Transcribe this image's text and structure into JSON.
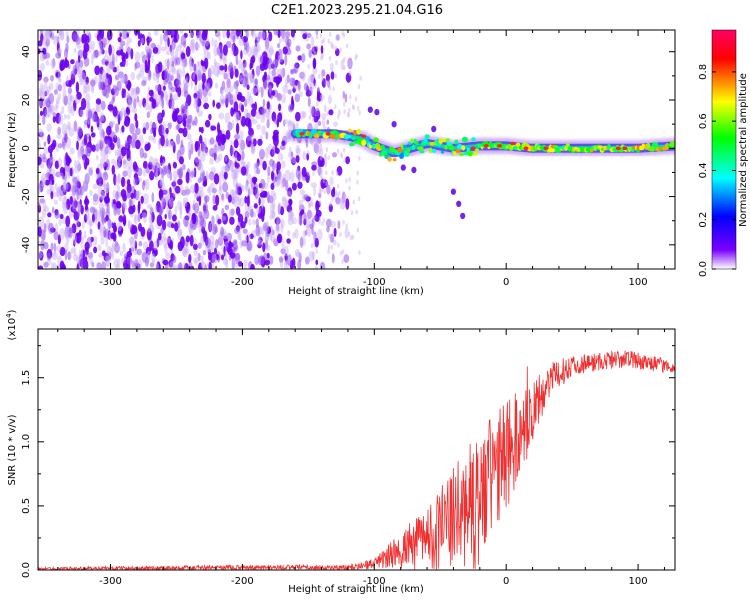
{
  "title": "C2E1.2023.295.21.04.G16",
  "chart_data": [
    {
      "type": "heatmap",
      "xlabel": "Height of straight line (km)",
      "ylabel": "Frequency (Hz)",
      "xlim": [
        -355,
        128
      ],
      "ylim": [
        -50,
        49
      ],
      "x_ticks": [
        "-300",
        "-200",
        "-100",
        "0",
        "100"
      ],
      "y_ticks": [
        "-40",
        "-20",
        "0",
        "20",
        "40"
      ],
      "colorbar": {
        "label": "Normalized spectral amplitude",
        "range": [
          0,
          0.97
        ],
        "ticks": [
          "0.0",
          "0.2",
          "0.4",
          "0.6",
          "0.8"
        ],
        "colormap": [
          "#ffffff",
          "#7a00ff",
          "#0000ff",
          "#00ffff",
          "#00ff00",
          "#ffff00",
          "#ff0000",
          "#ff0066"
        ]
      },
      "features": {
        "noise_region_x": [
          -355,
          -115
        ],
        "signal_trace": [
          {
            "x": -160,
            "y": 6
          },
          {
            "x": -130,
            "y": 6
          },
          {
            "x": -110,
            "y": 4
          },
          {
            "x": -100,
            "y": 1
          },
          {
            "x": -85,
            "y": -2
          },
          {
            "x": -60,
            "y": 2
          },
          {
            "x": -40,
            "y": 0
          },
          {
            "x": -20,
            "y": 1
          },
          {
            "x": 0,
            "y": 1
          },
          {
            "x": 20,
            "y": 0
          },
          {
            "x": 60,
            "y": 0
          },
          {
            "x": 100,
            "y": 0
          },
          {
            "x": 128,
            "y": 1
          }
        ]
      }
    },
    {
      "type": "line",
      "xlabel": "Height of straight line (km)",
      "ylabel": "SNR (10 * v/v)",
      "y_multiplier": "(x10",
      "y_multiplier_exp": "4",
      "y_multiplier_close": ")",
      "xlim": [
        -355,
        128
      ],
      "ylim": [
        0,
        1.88
      ],
      "x_ticks": [
        "-300",
        "-200",
        "-100",
        "0",
        "100"
      ],
      "y_ticks": [
        "0.0",
        "0.5",
        "1.0",
        "1.5"
      ],
      "series_color": "#f03030",
      "envelope": [
        {
          "x": -355,
          "mean": 0.01,
          "spread": 0.01
        },
        {
          "x": -200,
          "mean": 0.02,
          "spread": 0.02
        },
        {
          "x": -120,
          "mean": 0.02,
          "spread": 0.02
        },
        {
          "x": -100,
          "mean": 0.05,
          "spread": 0.04
        },
        {
          "x": -80,
          "mean": 0.15,
          "spread": 0.15
        },
        {
          "x": -60,
          "mean": 0.25,
          "spread": 0.25
        },
        {
          "x": -40,
          "mean": 0.4,
          "spread": 0.4
        },
        {
          "x": -20,
          "mean": 0.55,
          "spread": 0.55
        },
        {
          "x": 0,
          "mean": 0.9,
          "spread": 0.45
        },
        {
          "x": 20,
          "mean": 1.2,
          "spread": 0.25
        },
        {
          "x": 30,
          "mean": 1.45,
          "spread": 0.15
        },
        {
          "x": 50,
          "mean": 1.6,
          "spread": 0.08
        },
        {
          "x": 90,
          "mean": 1.65,
          "spread": 0.07
        },
        {
          "x": 128,
          "mean": 1.58,
          "spread": 0.05
        }
      ]
    }
  ]
}
